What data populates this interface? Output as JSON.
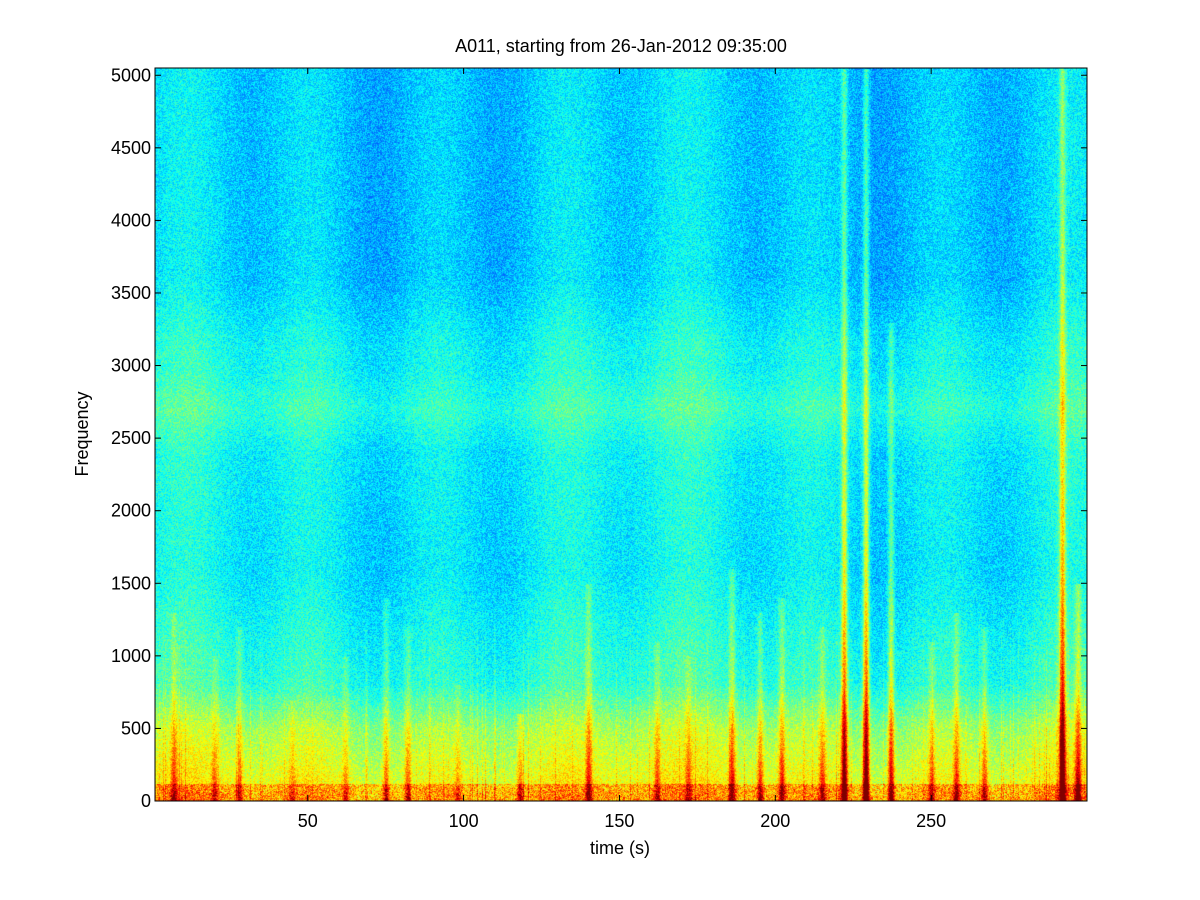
{
  "chart_data": {
    "type": "heatmap",
    "title": "A011, starting from 26-Jan-2012 09:35:00",
    "xlabel": "time (s)",
    "ylabel": "Frequency",
    "xlim": [
      1,
      300
    ],
    "ylim": [
      0,
      5050
    ],
    "x_ticks": [
      50,
      100,
      150,
      200,
      250
    ],
    "y_ticks": [
      0,
      500,
      1000,
      1500,
      2000,
      2500,
      3000,
      3500,
      4000,
      4500,
      5000
    ],
    "colormap": "jet",
    "colors": {
      "background": "#00d8e8",
      "mid": "#7dff7a",
      "high": "#ffff00",
      "peak": "#e00000"
    },
    "grid": false,
    "legend": "none",
    "high_energy_band_frequency": [
      0,
      500
    ],
    "secondary_band_frequency": [
      2400,
      3000
    ],
    "transient_events": [
      {
        "time": 7,
        "intensity": 0.45,
        "max_frequency": 1300
      },
      {
        "time": 20,
        "intensity": 0.35,
        "max_frequency": 1000
      },
      {
        "time": 28,
        "intensity": 0.4,
        "max_frequency": 1200
      },
      {
        "time": 45,
        "intensity": 0.3,
        "max_frequency": 700
      },
      {
        "time": 62,
        "intensity": 0.35,
        "max_frequency": 1000
      },
      {
        "time": 75,
        "intensity": 0.5,
        "max_frequency": 1400
      },
      {
        "time": 82,
        "intensity": 0.45,
        "max_frequency": 1200
      },
      {
        "time": 98,
        "intensity": 0.3,
        "max_frequency": 800
      },
      {
        "time": 118,
        "intensity": 0.5,
        "max_frequency": 600
      },
      {
        "time": 140,
        "intensity": 0.55,
        "max_frequency": 1500
      },
      {
        "time": 162,
        "intensity": 0.45,
        "max_frequency": 1100
      },
      {
        "time": 172,
        "intensity": 0.4,
        "max_frequency": 1000
      },
      {
        "time": 186,
        "intensity": 0.65,
        "max_frequency": 1600
      },
      {
        "time": 195,
        "intensity": 0.55,
        "max_frequency": 1300
      },
      {
        "time": 202,
        "intensity": 0.6,
        "max_frequency": 1400
      },
      {
        "time": 215,
        "intensity": 0.5,
        "max_frequency": 1200
      },
      {
        "time": 222,
        "intensity": 0.9,
        "max_frequency": 5050
      },
      {
        "time": 229,
        "intensity": 1.0,
        "max_frequency": 5050
      },
      {
        "time": 237,
        "intensity": 0.7,
        "max_frequency": 3300
      },
      {
        "time": 250,
        "intensity": 0.45,
        "max_frequency": 1100
      },
      {
        "time": 258,
        "intensity": 0.55,
        "max_frequency": 1300
      },
      {
        "time": 267,
        "intensity": 0.55,
        "max_frequency": 1200
      },
      {
        "time": 292,
        "intensity": 1.0,
        "max_frequency": 5050
      },
      {
        "time": 297,
        "intensity": 0.7,
        "max_frequency": 1500
      }
    ]
  }
}
